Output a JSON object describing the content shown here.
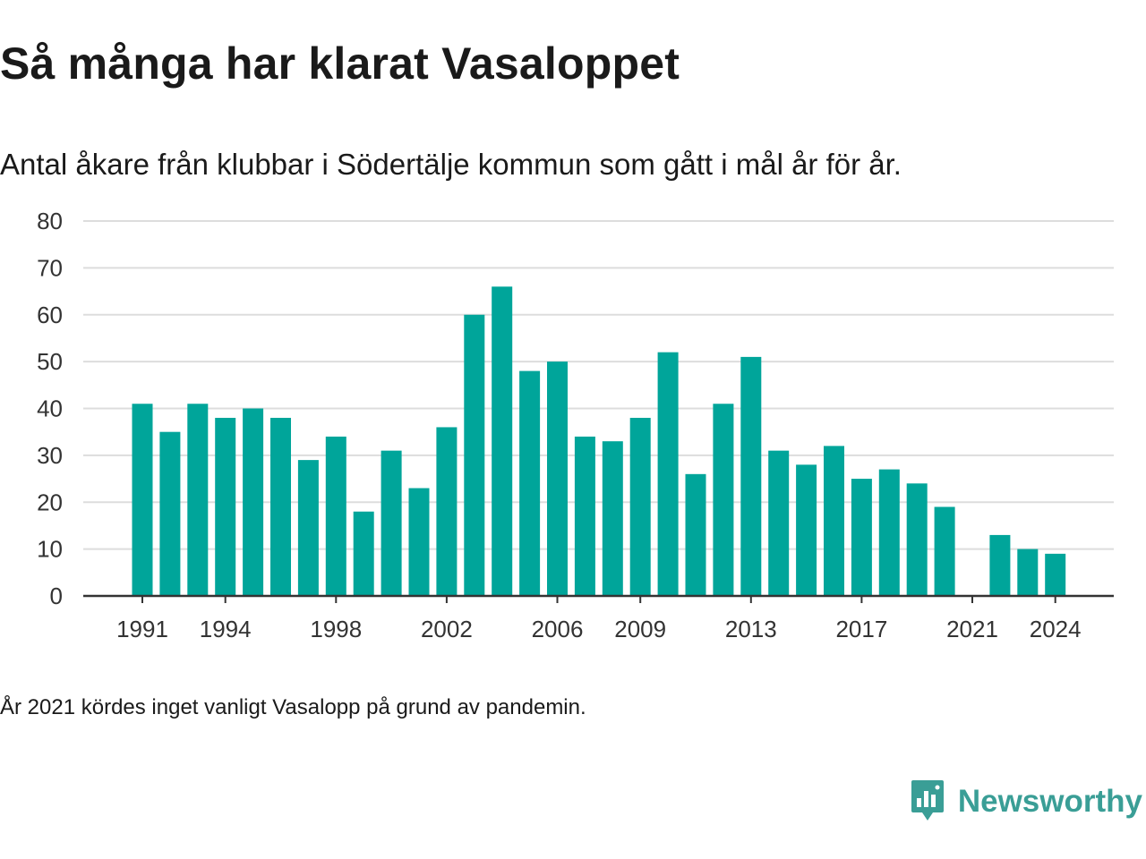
{
  "title": "Så många har klarat Vasaloppet",
  "subtitle": "Antal åkare från klubbar i Södertälje kommun som gått i mål år för år.",
  "note": "År 2021 kördes inget vanligt Vasalopp på grund av pandemin.",
  "brand": {
    "name": "Newsworthy",
    "icon": "newsworthy-logo-icon",
    "color": "#3a9e96"
  },
  "colors": {
    "bar": "#00a59a",
    "grid": "#dddddd",
    "axis": "#333333",
    "tick_text": "#333333"
  },
  "chart_data": {
    "type": "bar",
    "title": "Så många har klarat Vasaloppet",
    "subtitle": "Antal åkare från klubbar i Södertälje kommun som gått i mål år för år.",
    "xlabel": "",
    "ylabel": "",
    "ylim": [
      0,
      80
    ],
    "y_ticks": [
      0,
      10,
      20,
      30,
      40,
      50,
      60,
      70,
      80
    ],
    "x_tick_labels": [
      "1991",
      "1994",
      "1998",
      "2002",
      "2006",
      "2009",
      "2013",
      "2017",
      "2021",
      "2024"
    ],
    "grid": true,
    "legend": "none",
    "categories": [
      1991,
      1992,
      1993,
      1994,
      1995,
      1996,
      1997,
      1998,
      1999,
      2000,
      2001,
      2002,
      2003,
      2004,
      2005,
      2006,
      2007,
      2008,
      2009,
      2010,
      2011,
      2012,
      2013,
      2014,
      2015,
      2016,
      2017,
      2018,
      2019,
      2020,
      2021,
      2022,
      2023,
      2024
    ],
    "values": [
      41,
      35,
      41,
      38,
      40,
      38,
      29,
      34,
      18,
      31,
      23,
      36,
      60,
      66,
      48,
      50,
      34,
      33,
      38,
      52,
      26,
      41,
      51,
      31,
      28,
      32,
      25,
      27,
      24,
      19,
      null,
      13,
      10,
      9
    ]
  }
}
